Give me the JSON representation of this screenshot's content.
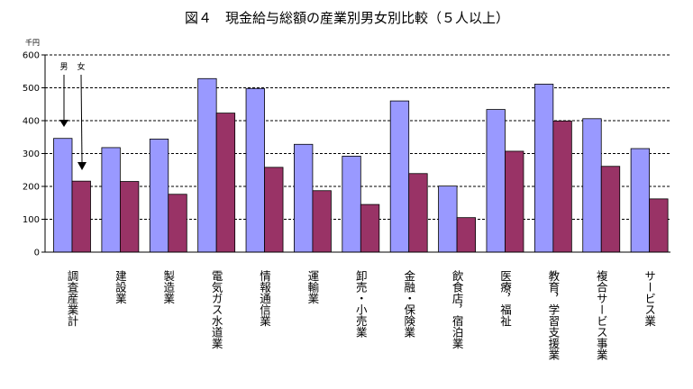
{
  "chart_data": {
    "type": "bar",
    "title": "図４　現金給与総額の産業別男女別比較（５人以上）",
    "unit_label": "千円",
    "ylim": [
      0,
      600
    ],
    "yticks": [
      "0",
      "100",
      "200",
      "300",
      "400",
      "500",
      "600"
    ],
    "grid": "dashed horizontal",
    "categories": [
      "調査産業計",
      "建設業",
      "製造業",
      "電気ガス水道業",
      "情報通信業",
      "運輸業",
      "卸売・小売業",
      "金融・保険業",
      "飲食店，宿泊業",
      "医療，福祉",
      "教育，学習支援業",
      "複合サービス事業",
      "サービス業"
    ],
    "series": [
      {
        "name": "男",
        "color": "#9999ff",
        "values": [
          346,
          318,
          344,
          528,
          498,
          328,
          292,
          460,
          201,
          434,
          511,
          406,
          315
        ]
      },
      {
        "name": "女",
        "color": "#993366",
        "values": [
          216,
          215,
          176,
          423,
          258,
          187,
          145,
          239,
          105,
          307,
          399,
          261,
          162
        ]
      }
    ]
  }
}
